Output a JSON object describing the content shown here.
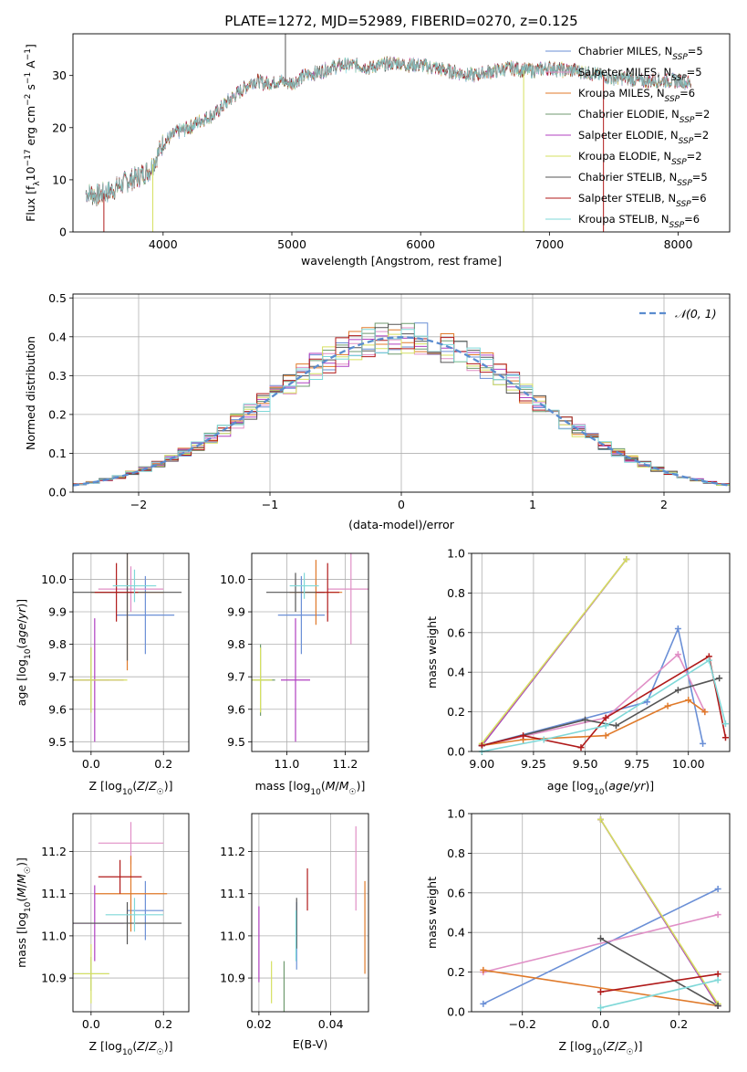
{
  "figure_title": "PLATE=1272, MJD=52989, FIBERID=0270, z=0.125",
  "colors": {
    "Chabrier MILES": "#6a8fd6",
    "Salpeter MILES": "#e08fc6",
    "Kroupa MILES": "#e07a2a",
    "Chabrier ELODIE": "#6f9a6f",
    "Salpeter ELODIE": "#b040c0",
    "Kroupa ELODIE": "#d6e060",
    "Chabrier STELIB": "#555555",
    "Salpeter STELIB": "#b01a1a",
    "Kroupa STELIB": "#7fd8d8"
  },
  "legend_spectrum": [
    {
      "label": "Chabrier MILES, N",
      "sub": "SSP",
      "tail": "=5",
      "color_key": "Chabrier MILES"
    },
    {
      "label": "Salpeter MILES, N",
      "sub": "SSP",
      "tail": "=5",
      "color_key": "Salpeter MILES"
    },
    {
      "label": "Kroupa MILES, N",
      "sub": "SSP",
      "tail": "=6",
      "color_key": "Kroupa MILES"
    },
    {
      "label": "Chabrier ELODIE, N",
      "sub": "SSP",
      "tail": "=2",
      "color_key": "Chabrier ELODIE"
    },
    {
      "label": "Salpeter ELODIE, N",
      "sub": "SSP",
      "tail": "=2",
      "color_key": "Salpeter ELODIE"
    },
    {
      "label": "Kroupa ELODIE, N",
      "sub": "SSP",
      "tail": "=2",
      "color_key": "Kroupa ELODIE"
    },
    {
      "label": "Chabrier STELIB, N",
      "sub": "SSP",
      "tail": "=5",
      "color_key": "Chabrier STELIB"
    },
    {
      "label": "Salpeter STELIB, N",
      "sub": "SSP",
      "tail": "=6",
      "color_key": "Salpeter STELIB"
    },
    {
      "label": "Kroupa STELIB, N",
      "sub": "SSP",
      "tail": "=6",
      "color_key": "Kroupa STELIB"
    }
  ],
  "chart_data": [
    {
      "id": "spectrum",
      "type": "line",
      "xlabel": "wavelength [Angstrom, rest frame]",
      "ylabel": "Flux [f_λ10^-17 erg cm^-2 s^-1 A^-1]",
      "xlim": [
        3300,
        8400
      ],
      "ylim": [
        0,
        38
      ],
      "xticks": [
        4000,
        5000,
        6000,
        7000,
        8000
      ],
      "yticks": [
        0,
        10,
        20,
        30
      ],
      "x": [
        3400,
        3500,
        3600,
        3700,
        3800,
        3900,
        4000,
        4100,
        4200,
        4300,
        4400,
        4500,
        4600,
        4700,
        4800,
        4900,
        5000,
        5100,
        5200,
        5300,
        5400,
        5500,
        5600,
        5700,
        5800,
        5900,
        6000,
        6100,
        6200,
        6300,
        6400,
        6500,
        6600,
        6700,
        6800,
        6900,
        7000,
        7100,
        7200,
        7300,
        7400,
        7500,
        7600,
        7700,
        7800,
        7900,
        8000,
        8100
      ],
      "y": [
        7.5,
        7.0,
        8.0,
        9.5,
        10.5,
        12.0,
        17.0,
        19.0,
        20.0,
        21.5,
        22.5,
        25.0,
        27.0,
        29.0,
        28.5,
        29.0,
        28.5,
        30.0,
        30.5,
        31.5,
        32.0,
        32.0,
        31.5,
        32.0,
        32.5,
        32.0,
        32.0,
        31.5,
        31.0,
        30.5,
        30.0,
        30.5,
        31.0,
        31.5,
        31.0,
        31.0,
        31.5,
        31.0,
        31.0,
        30.5,
        30.0,
        29.5,
        29.5,
        29.0,
        29.0,
        29.0,
        29.0,
        28.5
      ],
      "legend_placement": "upper-right",
      "grid": false
    },
    {
      "id": "residuals",
      "type": "histogram",
      "xlabel": "(data-model)/error",
      "ylabel": "Normed distribution",
      "xlim": [
        -2.5,
        2.5
      ],
      "ylim": [
        0,
        0.51
      ],
      "xticks": [
        -2,
        -1,
        0,
        1,
        2
      ],
      "yticks": [
        0.0,
        0.1,
        0.2,
        0.3,
        0.4,
        0.5
      ],
      "bin_width": 0.1,
      "reference_curve": "N(0,1)",
      "legend_label": "𝒩(0, 1)",
      "legend_placement": "upper-right",
      "grid": true
    },
    {
      "id": "age_vs_Z",
      "type": "errorbar",
      "xlabel": "Z [log10(Z/Z☉)]",
      "ylabel": "age [log10(age/yr)]",
      "xlim": [
        -0.05,
        0.27
      ],
      "ylim": [
        9.47,
        10.08
      ],
      "xticks": [
        0.0,
        0.2
      ],
      "yticks": [
        9.5,
        9.6,
        9.7,
        9.8,
        9.9,
        10.0
      ],
      "points": [
        {
          "model": "Chabrier MILES",
          "x": 0.15,
          "y": 9.89,
          "xerr": 0.08,
          "yerr": 0.12
        },
        {
          "model": "Salpeter MILES",
          "x": 0.11,
          "y": 9.97,
          "xerr": 0.09,
          "yerr": 0.07
        },
        {
          "model": "Kroupa MILES",
          "x": 0.1,
          "y": 9.96,
          "xerr": 0.1,
          "yerr": 0.24
        },
        {
          "model": "Chabrier ELODIE",
          "x": 0.0,
          "y": 9.69,
          "xerr": 0.05,
          "yerr": 0.1
        },
        {
          "model": "Salpeter ELODIE",
          "x": 0.01,
          "y": 9.69,
          "xerr": 0.08,
          "yerr": 0.19
        },
        {
          "model": "Kroupa ELODIE",
          "x": 0.0,
          "y": 9.69,
          "xerr": 0.1,
          "yerr": 0.1
        },
        {
          "model": "Chabrier STELIB",
          "x": 0.1,
          "y": 9.96,
          "xerr": 0.15,
          "yerr": 0.21
        },
        {
          "model": "Salpeter STELIB",
          "x": 0.07,
          "y": 9.96,
          "xerr": 0.06,
          "yerr": 0.09
        },
        {
          "model": "Kroupa STELIB",
          "x": 0.12,
          "y": 9.98,
          "xerr": 0.06,
          "yerr": 0.05
        }
      ],
      "grid": true
    },
    {
      "id": "age_vs_mass",
      "type": "errorbar",
      "xlabel": "mass [log10(M/M☉)]",
      "ylabel": "",
      "xlim": [
        10.88,
        11.28
      ],
      "ylim": [
        9.47,
        10.08
      ],
      "xticks": [
        11.0,
        11.2
      ],
      "yticks": [
        9.5,
        9.6,
        9.7,
        9.8,
        9.9,
        10.0
      ],
      "points": [
        {
          "model": "Chabrier MILES",
          "x": 11.05,
          "y": 9.89,
          "xerr": 0.08,
          "yerr": 0.12
        },
        {
          "model": "Salpeter MILES",
          "x": 11.22,
          "y": 9.97,
          "xerr": 0.08,
          "yerr": 0.17
        },
        {
          "model": "Kroupa MILES",
          "x": 11.1,
          "y": 9.96,
          "xerr": 0.09,
          "yerr": 0.1
        },
        {
          "model": "Chabrier ELODIE",
          "x": 10.91,
          "y": 9.69,
          "xerr": 0.05,
          "yerr": 0.11
        },
        {
          "model": "Salpeter ELODIE",
          "x": 11.03,
          "y": 9.69,
          "xerr": 0.05,
          "yerr": 0.19
        },
        {
          "model": "Kroupa ELODIE",
          "x": 10.91,
          "y": 9.69,
          "xerr": 0.04,
          "yerr": 0.1
        },
        {
          "model": "Chabrier STELIB",
          "x": 11.03,
          "y": 9.96,
          "xerr": 0.1,
          "yerr": 0.06
        },
        {
          "model": "Salpeter STELIB",
          "x": 11.14,
          "y": 9.96,
          "xerr": 0.04,
          "yerr": 0.09
        },
        {
          "model": "Kroupa STELIB",
          "x": 11.06,
          "y": 9.98,
          "xerr": 0.05,
          "yerr": 0.04
        }
      ],
      "grid": true
    },
    {
      "id": "weight_vs_age",
      "type": "line",
      "xlabel": "age [log10(age/yr)]",
      "ylabel": "mass weight",
      "xlim": [
        8.95,
        10.2
      ],
      "ylim": [
        0,
        1
      ],
      "xticks": [
        9.0,
        9.25,
        9.5,
        9.75,
        10.0
      ],
      "xticklabels": [
        "9.00",
        "9.25",
        "9.50",
        "9.75",
        "10.00"
      ],
      "yticks": [
        0.0,
        0.2,
        0.4,
        0.6,
        0.8,
        1.0
      ],
      "series": [
        {
          "model": "Chabrier MILES",
          "x": [
            9.0,
            9.8,
            9.95,
            10.07
          ],
          "y": [
            0.03,
            0.25,
            0.62,
            0.04
          ]
        },
        {
          "model": "Salpeter MILES",
          "x": [
            9.0,
            9.6,
            9.95,
            10.08
          ],
          "y": [
            0.03,
            0.17,
            0.49,
            0.2
          ]
        },
        {
          "model": "Kroupa MILES",
          "x": [
            9.0,
            9.2,
            9.6,
            9.9,
            10.0,
            10.08
          ],
          "y": [
            0.03,
            0.06,
            0.08,
            0.23,
            0.26,
            0.2
          ]
        },
        {
          "model": "Chabrier ELODIE",
          "x": [
            9.0,
            9.7
          ],
          "y": [
            0.03,
            0.97
          ]
        },
        {
          "model": "Salpeter ELODIE",
          "x": [
            9.0,
            9.7
          ],
          "y": [
            0.03,
            0.97
          ]
        },
        {
          "model": "Kroupa ELODIE",
          "x": [
            9.0,
            9.7
          ],
          "y": [
            0.04,
            0.97
          ]
        },
        {
          "model": "Chabrier STELIB",
          "x": [
            9.0,
            9.5,
            9.65,
            9.95,
            10.15
          ],
          "y": [
            0.03,
            0.16,
            0.13,
            0.31,
            0.37
          ]
        },
        {
          "model": "Salpeter STELIB",
          "x": [
            9.0,
            9.2,
            9.48,
            9.6,
            10.1,
            10.18
          ],
          "y": [
            0.03,
            0.08,
            0.02,
            0.17,
            0.48,
            0.07
          ]
        },
        {
          "model": "Kroupa STELIB",
          "x": [
            9.0,
            9.3,
            9.6,
            10.1,
            10.18
          ],
          "y": [
            0.0,
            0.06,
            0.13,
            0.46,
            0.14
          ]
        }
      ],
      "grid": true
    },
    {
      "id": "mass_vs_Z",
      "type": "errorbar",
      "xlabel": "Z [log10(Z/Z☉)]",
      "ylabel": "mass [log10(M/M☉)]",
      "xlim": [
        -0.05,
        0.27
      ],
      "ylim": [
        10.82,
        11.29
      ],
      "xticks": [
        0.0,
        0.2
      ],
      "yticks": [
        10.9,
        11.0,
        11.1,
        11.2
      ],
      "points": [
        {
          "model": "Chabrier MILES",
          "x": 0.15,
          "y": 11.06,
          "xerr": 0.05,
          "yerr": 0.07
        },
        {
          "model": "Salpeter MILES",
          "x": 0.11,
          "y": 11.22,
          "xerr": 0.09,
          "yerr": 0.05
        },
        {
          "model": "Kroupa MILES",
          "x": 0.11,
          "y": 11.1,
          "xerr": 0.1,
          "yerr": 0.09
        },
        {
          "model": "Chabrier ELODIE",
          "x": 0.0,
          "y": 10.91,
          "xerr": 0.05,
          "yerr": 0.04
        },
        {
          "model": "Salpeter ELODIE",
          "x": 0.01,
          "y": 11.03,
          "xerr": 0.08,
          "yerr": 0.09
        },
        {
          "model": "Kroupa ELODIE",
          "x": 0.0,
          "y": 10.91,
          "xerr": 0.05,
          "yerr": 0.07
        },
        {
          "model": "Chabrier STELIB",
          "x": 0.1,
          "y": 11.03,
          "xerr": 0.15,
          "yerr": 0.05
        },
        {
          "model": "Salpeter STELIB",
          "x": 0.08,
          "y": 11.14,
          "xerr": 0.06,
          "yerr": 0.04
        },
        {
          "model": "Kroupa STELIB",
          "x": 0.12,
          "y": 11.05,
          "xerr": 0.08,
          "yerr": 0.04
        }
      ],
      "grid": true
    },
    {
      "id": "mass_vs_EBV",
      "type": "errorbar",
      "xlabel": "E(B-V)",
      "ylabel": "",
      "xlim": [
        0.018,
        0.0505
      ],
      "ylim": [
        10.82,
        11.29
      ],
      "xticks": [
        0.02,
        0.04
      ],
      "yticks": [
        10.9,
        11.0,
        11.1,
        11.2
      ],
      "points": [
        {
          "model": "Chabrier MILES",
          "x": 0.0305,
          "y": 11.0,
          "xerr": 0.0,
          "yerr": 0.08
        },
        {
          "model": "Salpeter MILES",
          "x": 0.047,
          "y": 11.16,
          "xerr": 0.0,
          "yerr": 0.1
        },
        {
          "model": "Kroupa MILES",
          "x": 0.0495,
          "y": 11.02,
          "xerr": 0.0,
          "yerr": 0.11
        },
        {
          "model": "Chabrier ELODIE",
          "x": 0.027,
          "y": 10.88,
          "xerr": 0.0,
          "yerr": 0.06
        },
        {
          "model": "Salpeter ELODIE",
          "x": 0.02,
          "y": 10.98,
          "xerr": 0.0,
          "yerr": 0.09
        },
        {
          "model": "Kroupa ELODIE",
          "x": 0.0235,
          "y": 10.89,
          "xerr": 0.0,
          "yerr": 0.05
        },
        {
          "model": "Chabrier STELIB",
          "x": 0.0305,
          "y": 11.03,
          "xerr": 0.0,
          "yerr": 0.06
        },
        {
          "model": "Salpeter STELIB",
          "x": 0.0335,
          "y": 11.11,
          "xerr": 0.0,
          "yerr": 0.05
        },
        {
          "model": "Kroupa STELIB",
          "x": 0.0303,
          "y": 11.0,
          "xerr": 0.0,
          "yerr": 0.06
        }
      ],
      "grid": true
    },
    {
      "id": "weight_vs_Z",
      "type": "line",
      "xlabel": "Z [log10(Z/Z☉)]",
      "ylabel": "mass weight",
      "xlim": [
        -0.33,
        0.33
      ],
      "ylim": [
        0,
        1
      ],
      "xticks": [
        -0.2,
        0.0,
        0.2
      ],
      "xticklabels": [
        "−0.2",
        "0.0",
        "0.2"
      ],
      "yticks": [
        0.0,
        0.2,
        0.4,
        0.6,
        0.8,
        1.0
      ],
      "series": [
        {
          "model": "Chabrier MILES",
          "x": [
            -0.3,
            0.3
          ],
          "y": [
            0.04,
            0.62
          ]
        },
        {
          "model": "Salpeter MILES",
          "x": [
            -0.3,
            0.3
          ],
          "y": [
            0.2,
            0.49
          ]
        },
        {
          "model": "Kroupa MILES",
          "x": [
            -0.3,
            0.3
          ],
          "y": [
            0.21,
            0.03
          ]
        },
        {
          "model": "Chabrier ELODIE",
          "x": [
            0.0,
            0.3
          ],
          "y": [
            0.97,
            0.03
          ]
        },
        {
          "model": "Salpeter ELODIE",
          "x": [
            0.0,
            0.3
          ],
          "y": [
            0.97,
            0.03
          ]
        },
        {
          "model": "Kroupa ELODIE",
          "x": [
            0.0,
            0.3
          ],
          "y": [
            0.97,
            0.04
          ]
        },
        {
          "model": "Chabrier STELIB",
          "x": [
            0.0,
            0.3
          ],
          "y": [
            0.37,
            0.03
          ]
        },
        {
          "model": "Salpeter STELIB",
          "x": [
            0.0,
            0.3
          ],
          "y": [
            0.1,
            0.19
          ]
        },
        {
          "model": "Kroupa STELIB",
          "x": [
            0.0,
            0.3
          ],
          "y": [
            0.02,
            0.16
          ]
        }
      ],
      "grid": true
    }
  ]
}
